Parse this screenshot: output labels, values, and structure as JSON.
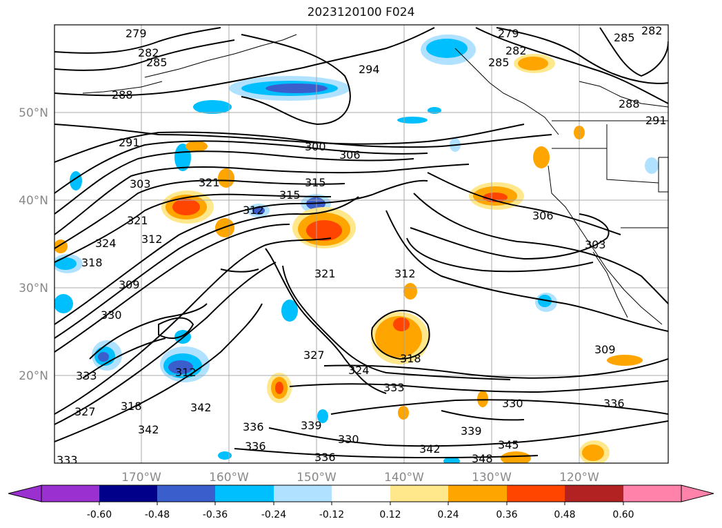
{
  "title": "2023120100 F024",
  "lon_ticks": [
    "170°W",
    "160°W",
    "150°W",
    "140°W",
    "130°W",
    "120°W"
  ],
  "lat_ticks": [
    "50°N",
    "40°N",
    "30°N",
    "20°N"
  ],
  "contour_labels": [
    "279",
    "282",
    "285",
    "288",
    "291",
    "294",
    "300",
    "303",
    "306",
    "309",
    "312",
    "315",
    "318",
    "321",
    "324",
    "327",
    "330",
    "333",
    "336",
    "339",
    "342",
    "345",
    "348"
  ],
  "colorbar": {
    "ticks": [
      "-0.60",
      "-0.48",
      "-0.36",
      "-0.24",
      "-0.12",
      "0.12",
      "0.24",
      "0.36",
      "0.48",
      "0.60"
    ],
    "colors": [
      "#9b30d0",
      "#00008b",
      "#3a5fcd",
      "#00bfff",
      "#b0e2ff",
      "#ffffff",
      "#ffe88c",
      "#ffa500",
      "#ff4500",
      "#b22222",
      "#ff82ab",
      "#ff82ab"
    ]
  },
  "shading": {
    "negative_colors": [
      "#b0e2ff",
      "#00bfff",
      "#3a5fcd"
    ],
    "positive_colors": [
      "#ffe88c",
      "#ffa500",
      "#ff4500"
    ]
  }
}
